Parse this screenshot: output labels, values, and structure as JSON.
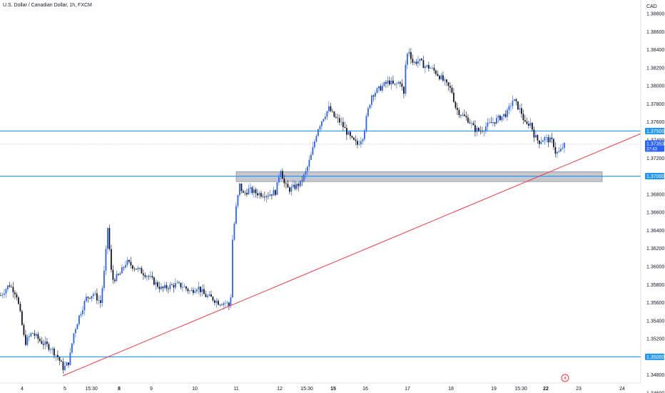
{
  "chart_title": "U.S. Dollar / Canadian Dollar, 1h, FXCM",
  "currency": "CAD",
  "colors": {
    "candle_up": "#2962ff",
    "candle_down": "#131722",
    "level_line": "#2196f3",
    "trendline": "#f23645",
    "zone_fill": "#b2b5be",
    "price_line": "#2962ff"
  },
  "chart_data": {
    "type": "candlestick",
    "symbol": "U.S. Dollar / Canadian Dollar",
    "interval": "1h",
    "source": "FXCM",
    "ylim": [
      1.346,
      1.3895
    ],
    "y_ticks": [
      "1.38800",
      "1.38600",
      "1.38400",
      "1.38200",
      "1.38000",
      "1.37800",
      "1.37600",
      "1.37400",
      "1.37200",
      "1.36800",
      "1.36600",
      "1.36400",
      "1.36200",
      "1.36000",
      "1.35800",
      "1.35600",
      "1.35400",
      "1.35200",
      "1.34800",
      "1.34600"
    ],
    "x_ticks": [
      {
        "label": "4",
        "bold": false
      },
      {
        "label": "5",
        "bold": false
      },
      {
        "label": "15:30",
        "bold": false
      },
      {
        "label": "8",
        "bold": true
      },
      {
        "label": "9",
        "bold": false
      },
      {
        "label": "10",
        "bold": false
      },
      {
        "label": "11",
        "bold": false
      },
      {
        "label": "12",
        "bold": false
      },
      {
        "label": "15:30",
        "bold": false
      },
      {
        "label": "15",
        "bold": true
      },
      {
        "label": "16",
        "bold": false
      },
      {
        "label": "17",
        "bold": false
      },
      {
        "label": "18",
        "bold": false
      },
      {
        "label": "19",
        "bold": false
      },
      {
        "label": "15:30",
        "bold": false
      },
      {
        "label": "22",
        "bold": true
      },
      {
        "label": "23",
        "bold": false
      },
      {
        "label": "24",
        "bold": false
      }
    ],
    "levels": [
      {
        "value": 1.375,
        "label": "1.37500"
      },
      {
        "value": 1.37,
        "label": "1.37000"
      },
      {
        "value": 1.35,
        "label": "1.35000"
      }
    ],
    "zone": {
      "low": 1.3694,
      "high": 1.3705
    },
    "trendline": {
      "from": [
        1.3479
      ],
      "to": [
        1.3747
      ]
    },
    "current_price": {
      "value": 1.37353,
      "label": "1.37353",
      "countdown": "37:43"
    },
    "close_path": [
      [
        0,
        1.3568
      ],
      [
        12,
        1.358
      ],
      [
        22,
        1.357
      ],
      [
        28,
        1.3545
      ],
      [
        34,
        1.3515
      ],
      [
        44,
        1.3527
      ],
      [
        56,
        1.3517
      ],
      [
        70,
        1.351
      ],
      [
        80,
        1.35
      ],
      [
        88,
        1.3487
      ],
      [
        96,
        1.3495
      ],
      [
        102,
        1.3525
      ],
      [
        110,
        1.3545
      ],
      [
        120,
        1.3565
      ],
      [
        130,
        1.357
      ],
      [
        140,
        1.356
      ],
      [
        146,
        1.36
      ],
      [
        150,
        1.3643
      ],
      [
        156,
        1.3585
      ],
      [
        166,
        1.359
      ],
      [
        176,
        1.3605
      ],
      [
        186,
        1.36
      ],
      [
        196,
        1.3595
      ],
      [
        206,
        1.359
      ],
      [
        216,
        1.3582
      ],
      [
        226,
        1.3575
      ],
      [
        236,
        1.3578
      ],
      [
        246,
        1.358
      ],
      [
        256,
        1.3578
      ],
      [
        266,
        1.3572
      ],
      [
        276,
        1.3578
      ],
      [
        286,
        1.3568
      ],
      [
        296,
        1.3565
      ],
      [
        306,
        1.356
      ],
      [
        316,
        1.356
      ],
      [
        322,
        1.3555
      ],
      [
        325,
        1.363
      ],
      [
        330,
        1.3665
      ],
      [
        335,
        1.369
      ],
      [
        340,
        1.368
      ],
      [
        348,
        1.3685
      ],
      [
        356,
        1.3682
      ],
      [
        366,
        1.368
      ],
      [
        376,
        1.368
      ],
      [
        386,
        1.3683
      ],
      [
        392,
        1.371
      ],
      [
        398,
        1.369
      ],
      [
        404,
        1.3685
      ],
      [
        412,
        1.3688
      ],
      [
        420,
        1.3692
      ],
      [
        428,
        1.3705
      ],
      [
        436,
        1.3725
      ],
      [
        444,
        1.3752
      ],
      [
        452,
        1.3765
      ],
      [
        460,
        1.3775
      ],
      [
        468,
        1.3765
      ],
      [
        476,
        1.376
      ],
      [
        484,
        1.375
      ],
      [
        492,
        1.374
      ],
      [
        500,
        1.3735
      ],
      [
        508,
        1.3745
      ],
      [
        514,
        1.377
      ],
      [
        520,
        1.379
      ],
      [
        528,
        1.3795
      ],
      [
        536,
        1.38
      ],
      [
        544,
        1.3805
      ],
      [
        552,
        1.38
      ],
      [
        560,
        1.3805
      ],
      [
        565,
        1.379
      ],
      [
        568,
        1.383
      ],
      [
        572,
        1.384
      ],
      [
        578,
        1.3825
      ],
      [
        586,
        1.3828
      ],
      [
        594,
        1.3822
      ],
      [
        602,
        1.382
      ],
      [
        610,
        1.3815
      ],
      [
        618,
        1.3808
      ],
      [
        626,
        1.38
      ],
      [
        632,
        1.3795
      ],
      [
        638,
        1.3775
      ],
      [
        646,
        1.3768
      ],
      [
        656,
        1.3762
      ],
      [
        664,
        1.3752
      ],
      [
        672,
        1.375
      ],
      [
        680,
        1.3755
      ],
      [
        690,
        1.376
      ],
      [
        700,
        1.3765
      ],
      [
        710,
        1.377
      ],
      [
        718,
        1.3785
      ],
      [
        724,
        1.3778
      ],
      [
        730,
        1.377
      ],
      [
        736,
        1.3755
      ],
      [
        742,
        1.376
      ],
      [
        748,
        1.3745
      ],
      [
        754,
        1.3738
      ],
      [
        762,
        1.3742
      ],
      [
        768,
        1.374
      ],
      [
        774,
        1.3738
      ],
      [
        778,
        1.3725
      ],
      [
        784,
        1.3727
      ],
      [
        788,
        1.3733
      ],
      [
        792,
        1.3735
      ]
    ]
  }
}
